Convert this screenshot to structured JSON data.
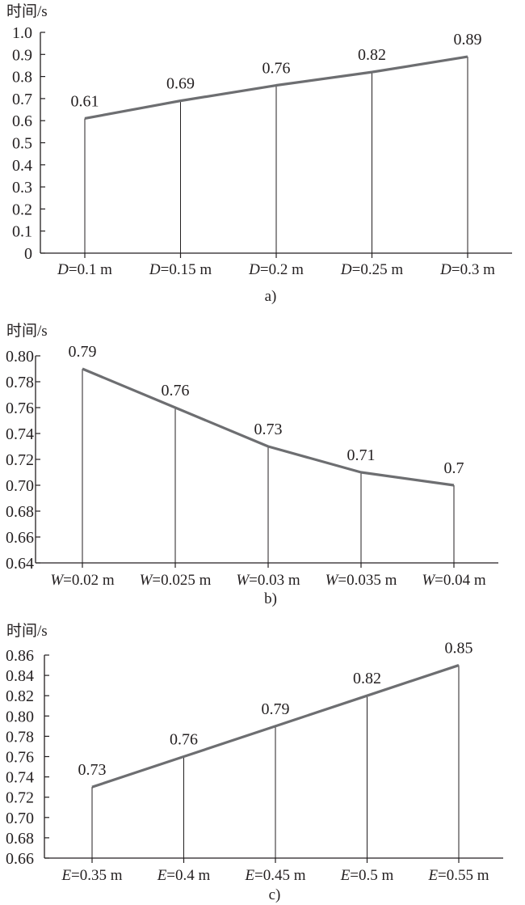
{
  "chart_data": [
    {
      "type": "line",
      "ylabel": "时间/s",
      "xvar": "D",
      "categories": [
        "=0.1 m",
        "=0.15 m",
        "=0.2 m",
        "=0.25 m",
        "=0.3 m"
      ],
      "values": [
        0.61,
        0.69,
        0.76,
        0.82,
        0.89
      ],
      "value_labels": [
        "0.61",
        "0.69",
        "0.76",
        "0.82",
        "0.89"
      ],
      "yticks": [
        "0",
        "0.1",
        "0.2",
        "0.3",
        "0.4",
        "0.5",
        "0.6",
        "0.7",
        "0.8",
        "0.9",
        "1.0"
      ],
      "ylim": [
        0,
        1.0
      ],
      "caption": "a)",
      "line_color": "#6d6e71",
      "grid": false
    },
    {
      "type": "line",
      "ylabel": "时间/s",
      "xvar": "W",
      "categories": [
        "=0.02 m",
        "=0.025 m",
        "=0.03 m",
        "=0.035 m",
        "=0.04 m"
      ],
      "values": [
        0.79,
        0.76,
        0.73,
        0.71,
        0.7
      ],
      "value_labels": [
        "0.79",
        "0.76",
        "0.73",
        "0.71",
        "0.7"
      ],
      "yticks": [
        "0.64",
        "0.66",
        "0.68",
        "0.70",
        "0.72",
        "0.74",
        "0.76",
        "0.78",
        "0.80"
      ],
      "ylim": [
        0.64,
        0.8
      ],
      "caption": "b)",
      "line_color": "#6d6e71",
      "grid": false
    },
    {
      "type": "line",
      "ylabel": "时间/s",
      "xvar": "E",
      "categories": [
        "=0.35 m",
        "=0.4 m",
        "=0.45 m",
        "=0.5 m",
        "=0.55 m"
      ],
      "values": [
        0.73,
        0.76,
        0.79,
        0.82,
        0.85
      ],
      "value_labels": [
        "0.73",
        "0.76",
        "0.79",
        "0.82",
        "0.85"
      ],
      "yticks": [
        "0.66",
        "0.68",
        "0.70",
        "0.72",
        "0.74",
        "0.76",
        "0.78",
        "0.80",
        "0.82",
        "0.84",
        "0.86"
      ],
      "ylim": [
        0.66,
        0.86
      ],
      "caption": "c)",
      "line_color": "#6d6e71",
      "grid": false
    }
  ]
}
